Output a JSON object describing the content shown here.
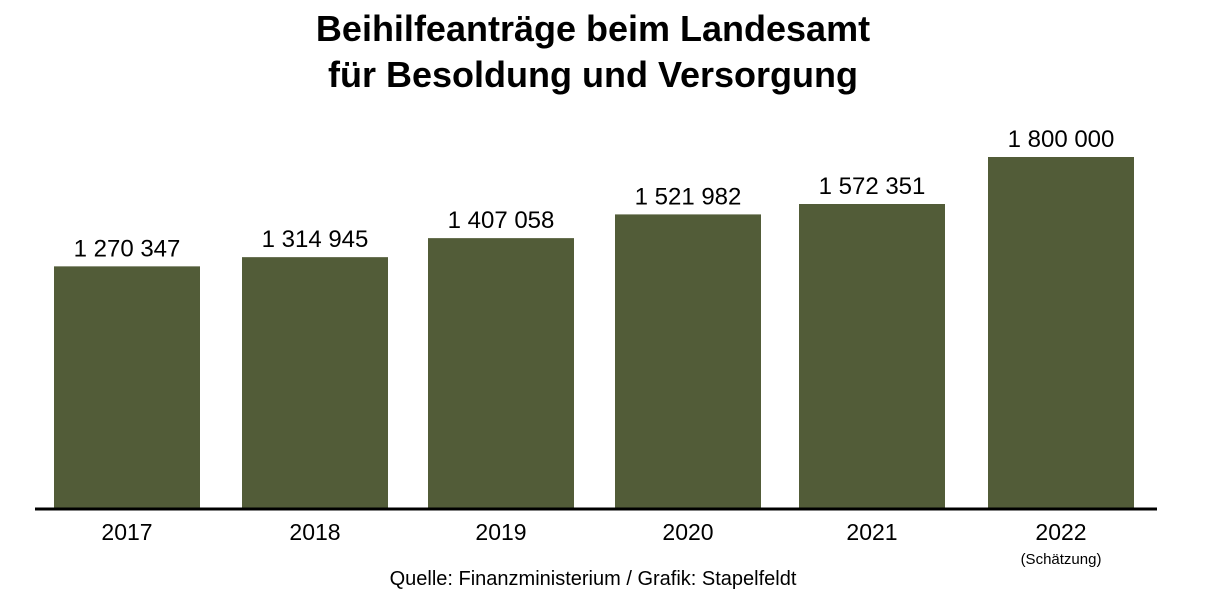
{
  "chart_data": {
    "type": "bar",
    "title_line1": "Beihilfeanträge beim Landesamt",
    "title_line2": "für Besoldung und Versorgung",
    "categories": [
      "2017",
      "2018",
      "2019",
      "2020",
      "2021",
      "2022"
    ],
    "category_notes": [
      "",
      "",
      "",
      "",
      "",
      "(Schätzung)"
    ],
    "values": [
      1270347,
      1314945,
      1407058,
      1521982,
      1572351,
      1800000
    ],
    "value_labels": [
      "1 270 347",
      "1 314 945",
      "1 407 058",
      "1 521 982",
      "1 572 351",
      "1 800 000"
    ],
    "xlabel": "",
    "ylabel": "",
    "ylim": [
      100000,
      1800000
    ],
    "grid": false,
    "bar_color": "#525c38",
    "source": "Quelle: Finanzministerium / Grafik: Stapelfeldt"
  }
}
